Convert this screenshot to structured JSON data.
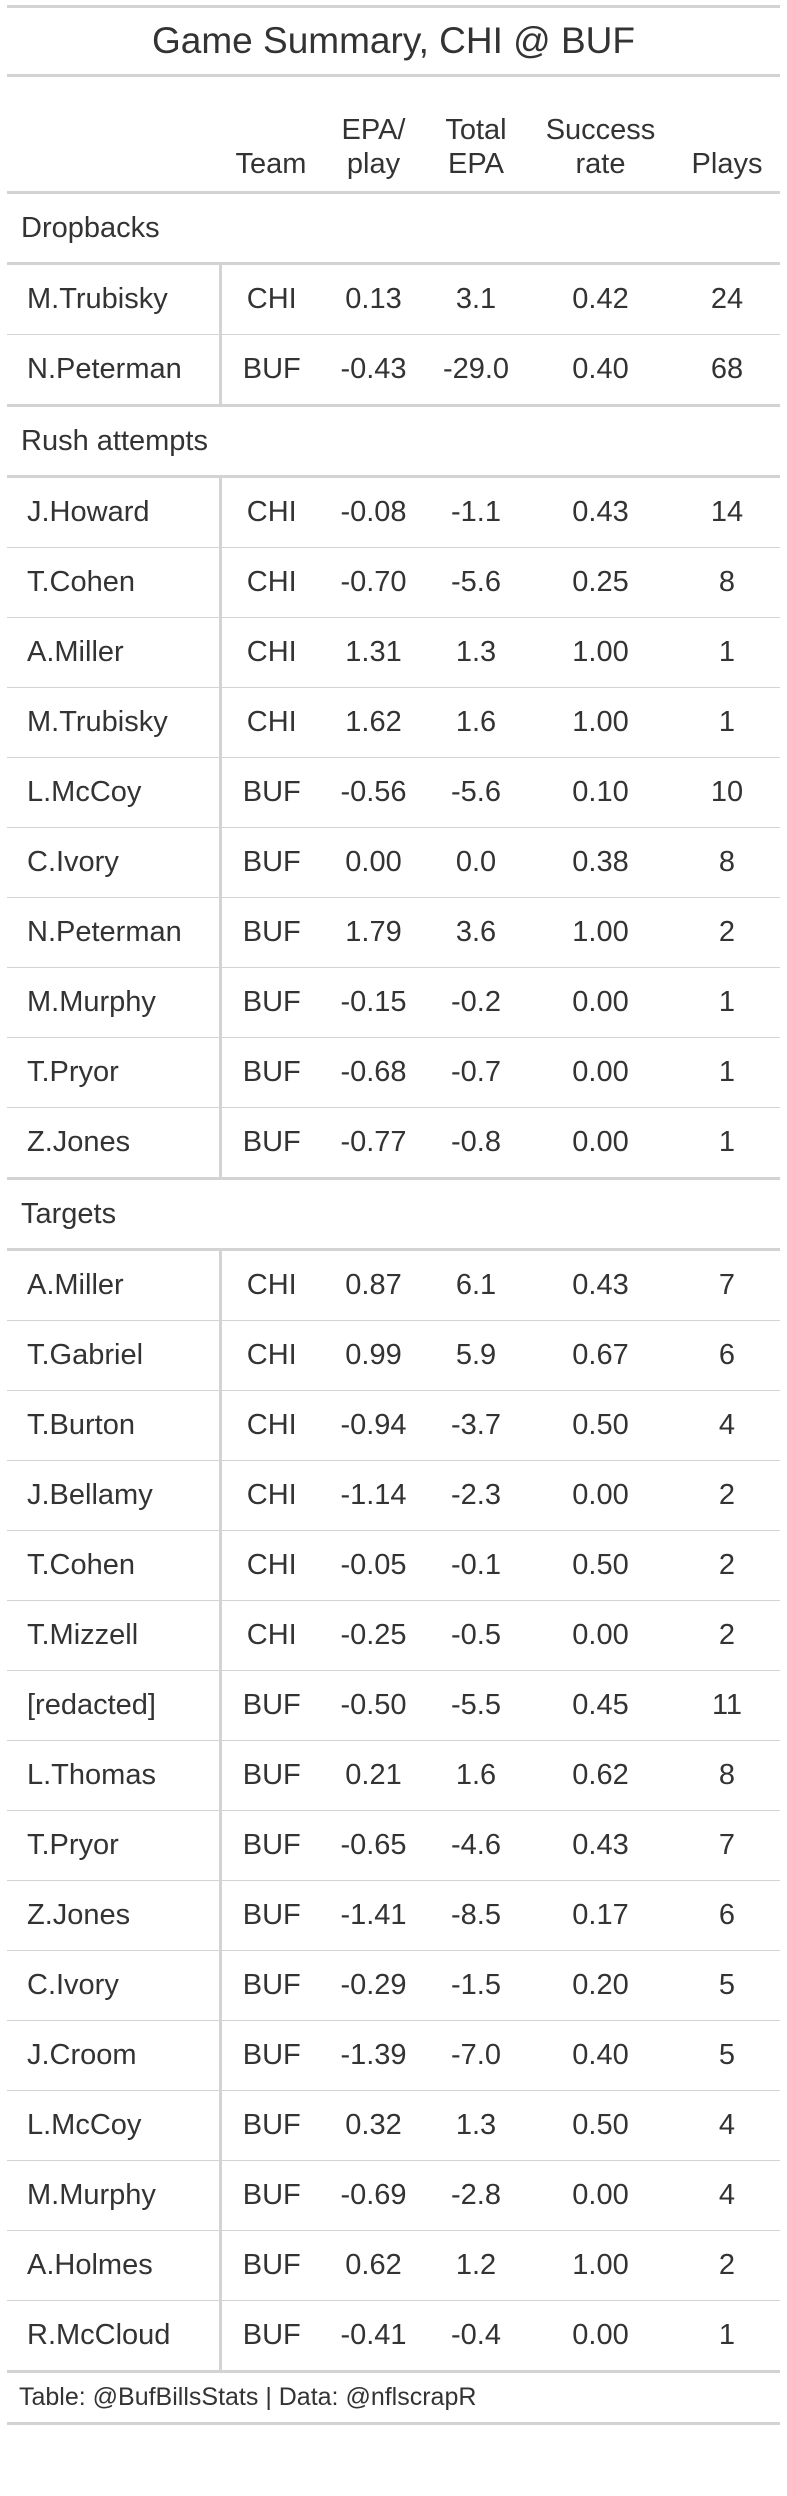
{
  "chart_data": {
    "type": "table",
    "title": "Game Summary, CHI @ BUF",
    "columns": [
      "",
      "Team",
      "EPA/ play",
      "Total EPA",
      "Success rate",
      "Plays"
    ],
    "groups": [
      {
        "label": "Dropbacks",
        "rows": [
          {
            "name": "M.Trubisky",
            "team": "CHI",
            "epa_play": "0.13",
            "total_epa": "3.1",
            "success_rate": "0.42",
            "plays": "24"
          },
          {
            "name": "N.Peterman",
            "team": "BUF",
            "epa_play": "-0.43",
            "total_epa": "-29.0",
            "success_rate": "0.40",
            "plays": "68"
          }
        ]
      },
      {
        "label": "Rush attempts",
        "rows": [
          {
            "name": "J.Howard",
            "team": "CHI",
            "epa_play": "-0.08",
            "total_epa": "-1.1",
            "success_rate": "0.43",
            "plays": "14"
          },
          {
            "name": "T.Cohen",
            "team": "CHI",
            "epa_play": "-0.70",
            "total_epa": "-5.6",
            "success_rate": "0.25",
            "plays": "8"
          },
          {
            "name": "A.Miller",
            "team": "CHI",
            "epa_play": "1.31",
            "total_epa": "1.3",
            "success_rate": "1.00",
            "plays": "1"
          },
          {
            "name": "M.Trubisky",
            "team": "CHI",
            "epa_play": "1.62",
            "total_epa": "1.6",
            "success_rate": "1.00",
            "plays": "1"
          },
          {
            "name": "L.McCoy",
            "team": "BUF",
            "epa_play": "-0.56",
            "total_epa": "-5.6",
            "success_rate": "0.10",
            "plays": "10"
          },
          {
            "name": "C.Ivory",
            "team": "BUF",
            "epa_play": "0.00",
            "total_epa": "0.0",
            "success_rate": "0.38",
            "plays": "8"
          },
          {
            "name": "N.Peterman",
            "team": "BUF",
            "epa_play": "1.79",
            "total_epa": "3.6",
            "success_rate": "1.00",
            "plays": "2"
          },
          {
            "name": "M.Murphy",
            "team": "BUF",
            "epa_play": "-0.15",
            "total_epa": "-0.2",
            "success_rate": "0.00",
            "plays": "1"
          },
          {
            "name": "T.Pryor",
            "team": "BUF",
            "epa_play": "-0.68",
            "total_epa": "-0.7",
            "success_rate": "0.00",
            "plays": "1"
          },
          {
            "name": "Z.Jones",
            "team": "BUF",
            "epa_play": "-0.77",
            "total_epa": "-0.8",
            "success_rate": "0.00",
            "plays": "1"
          }
        ]
      },
      {
        "label": "Targets",
        "rows": [
          {
            "name": "A.Miller",
            "team": "CHI",
            "epa_play": "0.87",
            "total_epa": "6.1",
            "success_rate": "0.43",
            "plays": "7"
          },
          {
            "name": "T.Gabriel",
            "team": "CHI",
            "epa_play": "0.99",
            "total_epa": "5.9",
            "success_rate": "0.67",
            "plays": "6"
          },
          {
            "name": "T.Burton",
            "team": "CHI",
            "epa_play": "-0.94",
            "total_epa": "-3.7",
            "success_rate": "0.50",
            "plays": "4"
          },
          {
            "name": "J.Bellamy",
            "team": "CHI",
            "epa_play": "-1.14",
            "total_epa": "-2.3",
            "success_rate": "0.00",
            "plays": "2"
          },
          {
            "name": "T.Cohen",
            "team": "CHI",
            "epa_play": "-0.05",
            "total_epa": "-0.1",
            "success_rate": "0.50",
            "plays": "2"
          },
          {
            "name": "T.Mizzell",
            "team": "CHI",
            "epa_play": "-0.25",
            "total_epa": "-0.5",
            "success_rate": "0.00",
            "plays": "2"
          },
          {
            "name": "[redacted]",
            "team": "BUF",
            "epa_play": "-0.50",
            "total_epa": "-5.5",
            "success_rate": "0.45",
            "plays": "11"
          },
          {
            "name": "L.Thomas",
            "team": "BUF",
            "epa_play": "0.21",
            "total_epa": "1.6",
            "success_rate": "0.62",
            "plays": "8"
          },
          {
            "name": "T.Pryor",
            "team": "BUF",
            "epa_play": "-0.65",
            "total_epa": "-4.6",
            "success_rate": "0.43",
            "plays": "7"
          },
          {
            "name": "Z.Jones",
            "team": "BUF",
            "epa_play": "-1.41",
            "total_epa": "-8.5",
            "success_rate": "0.17",
            "plays": "6"
          },
          {
            "name": "C.Ivory",
            "team": "BUF",
            "epa_play": "-0.29",
            "total_epa": "-1.5",
            "success_rate": "0.20",
            "plays": "5"
          },
          {
            "name": "J.Croom",
            "team": "BUF",
            "epa_play": "-1.39",
            "total_epa": "-7.0",
            "success_rate": "0.40",
            "plays": "5"
          },
          {
            "name": "L.McCoy",
            "team": "BUF",
            "epa_play": "0.32",
            "total_epa": "1.3",
            "success_rate": "0.50",
            "plays": "4"
          },
          {
            "name": "M.Murphy",
            "team": "BUF",
            "epa_play": "-0.69",
            "total_epa": "-2.8",
            "success_rate": "0.00",
            "plays": "4"
          },
          {
            "name": "A.Holmes",
            "team": "BUF",
            "epa_play": "0.62",
            "total_epa": "1.2",
            "success_rate": "1.00",
            "plays": "2"
          },
          {
            "name": "R.McCloud",
            "team": "BUF",
            "epa_play": "-0.41",
            "total_epa": "-0.4",
            "success_rate": "0.00",
            "plays": "1"
          }
        ]
      }
    ],
    "footer": "Table: @BufBillsStats | Data: @nflscrapR"
  },
  "header": {
    "team": "Team",
    "epa_play": [
      "EPA/",
      "play"
    ],
    "total_epa": [
      "Total",
      "EPA"
    ],
    "success_rate": [
      "Success",
      "rate"
    ],
    "plays": "Plays"
  }
}
